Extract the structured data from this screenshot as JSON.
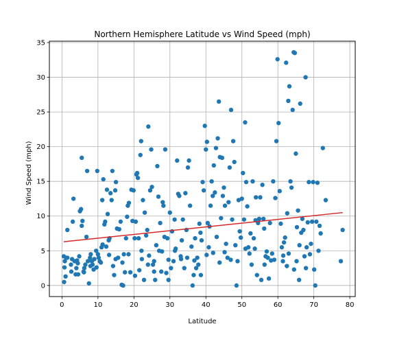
{
  "chart_data": {
    "type": "scatter",
    "title": "Northern Hemisphere Latitude vs Wind Speed (mph)",
    "xlabel": "Latitude",
    "ylabel": "Wind Speed (mph)",
    "xlim": [
      -3.5,
      81.5
    ],
    "ylim": [
      -1.6,
      35.2
    ],
    "xticks": [
      0,
      10,
      20,
      30,
      40,
      50,
      60,
      70,
      80
    ],
    "yticks": [
      0,
      5,
      10,
      15,
      20,
      25,
      30,
      35
    ],
    "grid": true,
    "point_color": "#1f77b4",
    "regression": {
      "x": [
        0.5,
        78
      ],
      "y": [
        6.3,
        10.5
      ],
      "color": "#d62728"
    },
    "points": [
      [
        0.5,
        4.2
      ],
      [
        0.8,
        3.5
      ],
      [
        0.7,
        2.6
      ],
      [
        1.0,
        1.3
      ],
      [
        0.6,
        0.5
      ],
      [
        1.5,
        4.0
      ],
      [
        1.5,
        8.0
      ],
      [
        2.5,
        3.0
      ],
      [
        2.8,
        3.8
      ],
      [
        3.0,
        9.2
      ],
      [
        3.2,
        12.5
      ],
      [
        3.5,
        3.5
      ],
      [
        3.8,
        1.6
      ],
      [
        4.0,
        2.5
      ],
      [
        4.2,
        3.6
      ],
      [
        4.5,
        1.6
      ],
      [
        4.8,
        4.2
      ],
      [
        5.0,
        10.7
      ],
      [
        5.3,
        11.0
      ],
      [
        5.5,
        18.4
      ],
      [
        5.5,
        8.6
      ],
      [
        5.7,
        9.3
      ],
      [
        6.0,
        2.0
      ],
      [
        6.2,
        2.5
      ],
      [
        6.5,
        3.0
      ],
      [
        6.8,
        7.0
      ],
      [
        7.0,
        16.5
      ],
      [
        7.2,
        3.5
      ],
      [
        7.5,
        0.3
      ],
      [
        7.8,
        4.0
      ],
      [
        8.0,
        4.5
      ],
      [
        8.3,
        3.5
      ],
      [
        8.5,
        3.0
      ],
      [
        8.8,
        2.3
      ],
      [
        9.0,
        3.8
      ],
      [
        9.5,
        5.0
      ],
      [
        9.8,
        16.5
      ],
      [
        10.0,
        4.5
      ],
      [
        10.2,
        4.0
      ],
      [
        10.5,
        3.5
      ],
      [
        10.8,
        3.3
      ],
      [
        11.0,
        5.5
      ],
      [
        11.2,
        12.3
      ],
      [
        11.5,
        15.3
      ],
      [
        11.8,
        8.8
      ],
      [
        12.0,
        9.2
      ],
      [
        12.3,
        5.6
      ],
      [
        12.5,
        13.8
      ],
      [
        12.7,
        10.3
      ],
      [
        13.0,
        6.5
      ],
      [
        13.2,
        6.8
      ],
      [
        13.5,
        13.3
      ],
      [
        13.8,
        12.3
      ],
      [
        14.0,
        16.5
      ],
      [
        14.2,
        2.8
      ],
      [
        14.5,
        1.5
      ],
      [
        14.8,
        13.7
      ],
      [
        15.0,
        14.9
      ],
      [
        15.3,
        8.2
      ],
      [
        15.6,
        4.0
      ],
      [
        15.9,
        8.1
      ],
      [
        16.3,
        9.2
      ],
      [
        16.6,
        0.1
      ],
      [
        17.0,
        0.0
      ],
      [
        17.2,
        4.5
      ],
      [
        17.5,
        1.9
      ],
      [
        17.8,
        6.8
      ],
      [
        18.1,
        9.9
      ],
      [
        18.3,
        11.5
      ],
      [
        18.6,
        11.9
      ],
      [
        19.0,
        1.9
      ],
      [
        19.3,
        13.8
      ],
      [
        19.6,
        9.3
      ],
      [
        19.9,
        13.7
      ],
      [
        20.2,
        6.8
      ],
      [
        20.5,
        9.2
      ],
      [
        20.7,
        16.0
      ],
      [
        20.9,
        16.2
      ],
      [
        21.1,
        15.5
      ],
      [
        21.3,
        6.8
      ],
      [
        21.5,
        2.2
      ],
      [
        21.8,
        18.8
      ],
      [
        22.0,
        20.8
      ],
      [
        22.2,
        3.8
      ],
      [
        22.5,
        12.3
      ],
      [
        22.8,
        0.8
      ],
      [
        23.0,
        10.5
      ],
      [
        23.4,
        7.2
      ],
      [
        23.7,
        8.0
      ],
      [
        24.0,
        22.9
      ],
      [
        24.2,
        4.3
      ],
      [
        24.5,
        13.7
      ],
      [
        24.8,
        19.6
      ],
      [
        25.0,
        14.2
      ],
      [
        25.3,
        3.0
      ],
      [
        25.6,
        3.5
      ],
      [
        25.9,
        0.8
      ],
      [
        26.2,
        5.8
      ],
      [
        26.5,
        17.2
      ],
      [
        26.8,
        12.8
      ],
      [
        27.0,
        5.0
      ],
      [
        27.3,
        9.0
      ],
      [
        27.6,
        2.0
      ],
      [
        28.0,
        12.0
      ],
      [
        28.2,
        11.5
      ],
      [
        28.5,
        7.0
      ],
      [
        28.7,
        19.6
      ],
      [
        29.0,
        1.8
      ],
      [
        29.3,
        6.8
      ],
      [
        29.6,
        0.8
      ],
      [
        30.0,
        10.5
      ],
      [
        30.3,
        2.5
      ],
      [
        30.6,
        7.8
      ],
      [
        31.0,
        3.5
      ],
      [
        31.3,
        9.5
      ],
      [
        31.6,
        5.3
      ],
      [
        32.0,
        18.0
      ],
      [
        32.3,
        13.2
      ],
      [
        32.6,
        12.9
      ],
      [
        33.0,
        4.2
      ],
      [
        33.3,
        6.5
      ],
      [
        33.6,
        9.5
      ],
      [
        34.0,
        2.5
      ],
      [
        34.3,
        13.3
      ],
      [
        34.6,
        8.0
      ],
      [
        35.0,
        17.0
      ],
      [
        35.3,
        18.0
      ],
      [
        35.6,
        11.5
      ],
      [
        36.0,
        5.6
      ],
      [
        36.3,
        0.0
      ],
      [
        36.6,
        1.5
      ],
      [
        37.0,
        6.8
      ],
      [
        37.3,
        2.5
      ],
      [
        37.6,
        4.0
      ],
      [
        37.9,
        3.0
      ],
      [
        38.2,
        8.9
      ],
      [
        38.5,
        7.6
      ],
      [
        38.8,
        6.5
      ],
      [
        39.1,
        14.9
      ],
      [
        39.4,
        13.7
      ],
      [
        39.7,
        23.0
      ],
      [
        40.0,
        19.6
      ],
      [
        40.3,
        20.7
      ],
      [
        40.5,
        9.0
      ],
      [
        40.8,
        5.5
      ],
      [
        41.0,
        8.5
      ],
      [
        41.3,
        11.5
      ],
      [
        41.6,
        15.0
      ],
      [
        41.9,
        12.9
      ],
      [
        42.2,
        17.3
      ],
      [
        42.5,
        13.4
      ],
      [
        42.8,
        19.8
      ],
      [
        43.0,
        7.0
      ],
      [
        43.3,
        21.2
      ],
      [
        43.6,
        26.5
      ],
      [
        43.9,
        18.5
      ],
      [
        44.2,
        9.7
      ],
      [
        44.5,
        18.4
      ],
      [
        44.7,
        12.9
      ],
      [
        45.0,
        14.1
      ],
      [
        45.3,
        11.5
      ],
      [
        45.6,
        6.0
      ],
      [
        46.0,
        4.0
      ],
      [
        46.3,
        12.0
      ],
      [
        46.6,
        17.0
      ],
      [
        47.0,
        25.3
      ],
      [
        47.3,
        9.5
      ],
      [
        47.6,
        20.8
      ],
      [
        47.9,
        17.8
      ],
      [
        48.2,
        5.8
      ],
      [
        48.5,
        0.0
      ],
      [
        48.8,
        3.5
      ],
      [
        49.1,
        12.3
      ],
      [
        49.4,
        7.8
      ],
      [
        49.7,
        6.9
      ],
      [
        50.0,
        12.5
      ],
      [
        50.3,
        16.2
      ],
      [
        50.6,
        9.5
      ],
      [
        50.9,
        23.5
      ],
      [
        51.2,
        14.9
      ],
      [
        51.5,
        11.4
      ],
      [
        51.8,
        5.5
      ],
      [
        52.1,
        4.6
      ],
      [
        52.4,
        7.5
      ],
      [
        52.7,
        3.0
      ],
      [
        53.0,
        15.0
      ],
      [
        53.3,
        6.8
      ],
      [
        53.6,
        5.3
      ],
      [
        53.9,
        12.7
      ],
      [
        54.2,
        1.5
      ],
      [
        54.5,
        9.0
      ],
      [
        54.8,
        9.6
      ],
      [
        55.1,
        12.7
      ],
      [
        55.4,
        0.8
      ],
      [
        55.7,
        14.5
      ],
      [
        56.0,
        9.6
      ],
      [
        56.3,
        3.0
      ],
      [
        56.6,
        4.2
      ],
      [
        56.9,
        4.9
      ],
      [
        57.2,
        4.0
      ],
      [
        57.5,
        1.0
      ],
      [
        57.8,
        9.0
      ],
      [
        58.1,
        3.6
      ],
      [
        58.4,
        4.6
      ],
      [
        58.7,
        15.0
      ],
      [
        59.0,
        3.7
      ],
      [
        59.3,
        12.6
      ],
      [
        59.6,
        20.8
      ],
      [
        59.9,
        32.6
      ],
      [
        60.2,
        23.4
      ],
      [
        60.5,
        13.6
      ],
      [
        60.8,
        8.9
      ],
      [
        61.1,
        5.5
      ],
      [
        61.4,
        3.5
      ],
      [
        61.7,
        6.2
      ],
      [
        62.0,
        6.9
      ],
      [
        62.3,
        32.1
      ],
      [
        62.6,
        10.4
      ],
      [
        62.9,
        26.6
      ],
      [
        63.2,
        28.7
      ],
      [
        63.5,
        15.0
      ],
      [
        63.8,
        14.1
      ],
      [
        64.1,
        25.3
      ],
      [
        64.4,
        33.6
      ],
      [
        64.7,
        33.5
      ],
      [
        65.0,
        19.0
      ],
      [
        65.3,
        8.4
      ],
      [
        65.6,
        10.8
      ],
      [
        65.9,
        0.8
      ],
      [
        66.2,
        26.2
      ],
      [
        66.5,
        7.6
      ],
      [
        66.8,
        9.6
      ],
      [
        67.1,
        8.0
      ],
      [
        67.4,
        4.2
      ],
      [
        67.7,
        30.0
      ],
      [
        68.0,
        5.5
      ],
      [
        68.3,
        9.1
      ],
      [
        68.6,
        14.9
      ],
      [
        68.9,
        4.5
      ],
      [
        69.2,
        6.0
      ],
      [
        69.5,
        9.2
      ],
      [
        69.8,
        14.9
      ],
      [
        70.1,
        2.3
      ],
      [
        70.4,
        0.0
      ],
      [
        70.7,
        9.2
      ],
      [
        71.0,
        14.8
      ],
      [
        71.3,
        5.0
      ],
      [
        71.6,
        8.6
      ],
      [
        71.9,
        7.5
      ],
      [
        72.5,
        19.8
      ],
      [
        73.3,
        12.3
      ],
      [
        77.5,
        3.5
      ],
      [
        78.0,
        8.0
      ],
      [
        62.5,
        2.8
      ],
      [
        64.5,
        2.3
      ],
      [
        65.2,
        3.5
      ],
      [
        66.0,
        5.8
      ],
      [
        67.8,
        2.5
      ],
      [
        63.0,
        4.6
      ],
      [
        61.5,
        4.3
      ],
      [
        56.2,
        8.2
      ],
      [
        53.8,
        9.4
      ],
      [
        51.0,
        5.3
      ],
      [
        46.9,
        3.7
      ],
      [
        45.2,
        4.8
      ],
      [
        43.8,
        3.3
      ],
      [
        42.0,
        4.7
      ],
      [
        40.2,
        4.4
      ],
      [
        38.6,
        1.5
      ],
      [
        36.8,
        3.6
      ],
      [
        34.8,
        4.0
      ],
      [
        33.1,
        3.8
      ],
      [
        31.4,
        5.0
      ],
      [
        29.6,
        3.7
      ],
      [
        27.8,
        4.9
      ],
      [
        25.6,
        2.0
      ],
      [
        23.9,
        3.0
      ],
      [
        22.1,
        5.0
      ],
      [
        20.3,
        1.4
      ],
      [
        18.5,
        4.5
      ],
      [
        16.8,
        3.3
      ],
      [
        14.9,
        3.8
      ],
      [
        13.1,
        4.4
      ],
      [
        11.3,
        5.9
      ],
      [
        9.6,
        2.6
      ],
      [
        7.9,
        2.8
      ],
      [
        6.1,
        1.9
      ],
      [
        4.4,
        3.2
      ],
      [
        2.6,
        2.0
      ],
      [
        1.2,
        4.0
      ]
    ]
  }
}
